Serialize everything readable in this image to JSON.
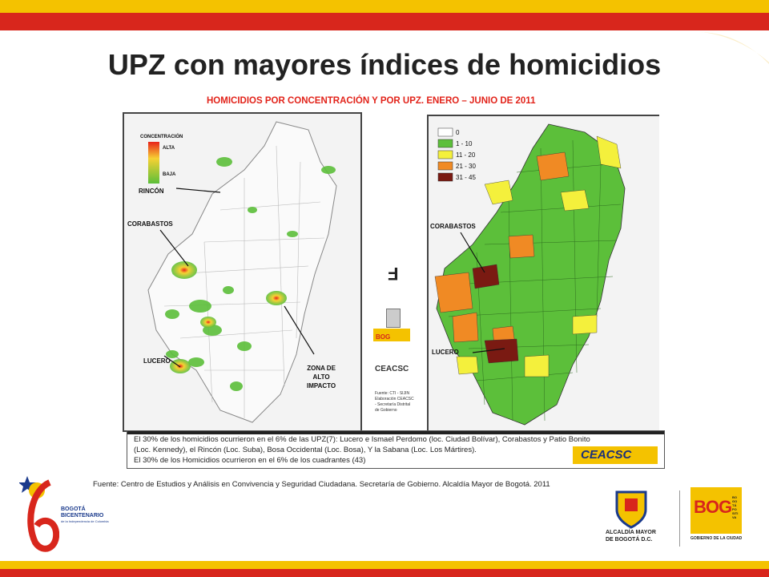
{
  "title": "UPZ con mayores índices de homicidios",
  "map_title": "HOMICIDIOS POR CONCENTRACIÓN Y POR UPZ. ENERO – JUNIO DE 2011",
  "left_map": {
    "legend_title": "CONCENTRACIÓN",
    "legend_high": "ALTA",
    "legend_low": "BAJA",
    "labels": {
      "rincon": "RINCÓN",
      "corabastos": "CORABASTOS",
      "lucero": "LUCERO",
      "zona": "ZONA DE\nALTO\nIMPACTO"
    }
  },
  "right_map": {
    "legend": [
      {
        "label": "0",
        "color": "#ffffff"
      },
      {
        "label": "1 - 10",
        "color": "#5cbf3a"
      },
      {
        "label": "11 - 20",
        "color": "#f4f03c"
      },
      {
        "label": "21 - 30",
        "color": "#f08a24"
      },
      {
        "label": "31 - 45",
        "color": "#7a1a12"
      }
    ],
    "labels": {
      "corabastos": "CORABASTOS",
      "lucero": "LUCERO"
    }
  },
  "center": {
    "symbol": "F",
    "bog": "BOG",
    "ceacsc": "CEACSC",
    "fuente": "Fuente: CTI - SIJIN\nElaboración CEACSC\n- Secretaría Distrital\nde Gobierno"
  },
  "info": {
    "line1": "El 30% de los homicidios ocurrieron en el 6% de las UPZ(7): Lucero e Ismael Perdomo (loc. Ciudad Bolívar), Corabastos y Patio Bonito",
    "line2": "(Loc. Kennedy), el Rincón (Loc. Suba), Bosa Occidental (Loc. Bosa), Y la Sabana (Loc. Los Mártires).",
    "line3": "El 30% de los Homicidios ocurrieron en el 6% de los cuadrantes (43)",
    "logo": "CEACSC"
  },
  "source": "Fuente: Centro de Estudios y Análisis en Convivencia y Seguridad Ciudadana. Secretaría de Gobierno. Alcaldía Mayor de Bogotá. 2011",
  "footer": {
    "bicentenario_l1": "BOGOTÁ",
    "bicentenario_l2": "BICENTENARIO",
    "bicentenario_l3": "de la Independencia de Colombia",
    "alcaldia_l1": "ALCALDÍA MAYOR",
    "alcaldia_l2": "DE BOGOTÁ D.C.",
    "bog_text": "BOG",
    "bog_side": "BOGOTÁ POSITIVA",
    "bog_sub": "GOBIERNO DE LA CIUDAD"
  },
  "colors": {
    "red": "#d8261c",
    "yellow": "#f4c200",
    "green": "#5cbf3a",
    "dark_red": "#7a1a12",
    "orange": "#f08a24"
  }
}
